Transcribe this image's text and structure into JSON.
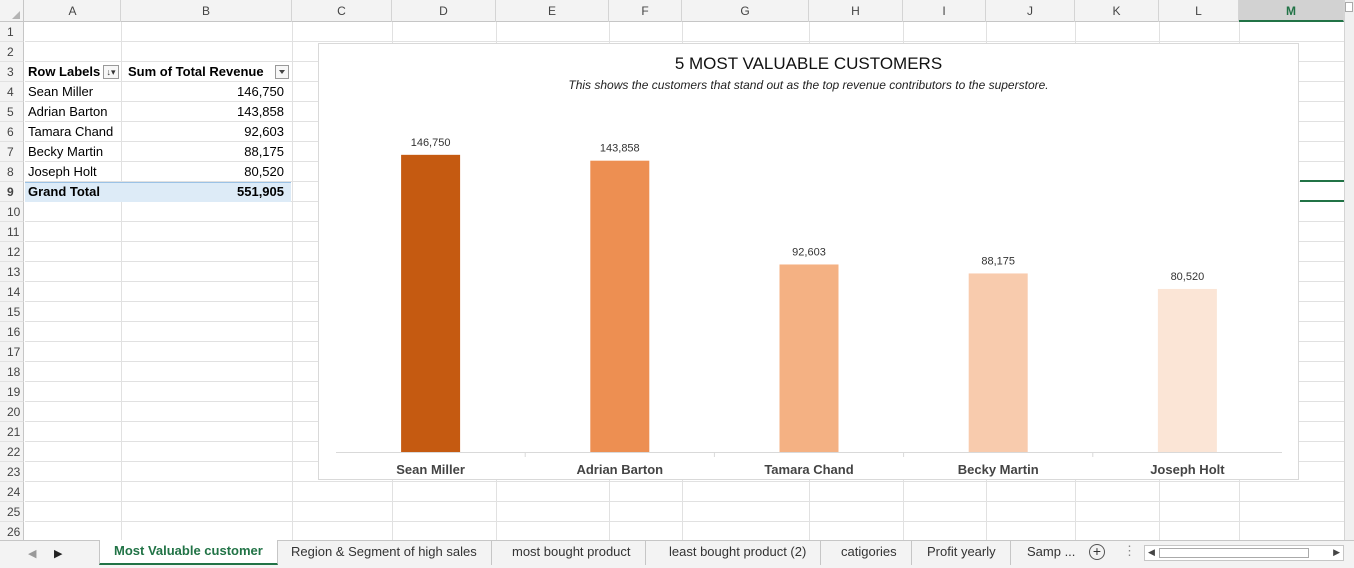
{
  "columns": [
    "A",
    "B",
    "C",
    "D",
    "E",
    "F",
    "G",
    "H",
    "I",
    "J",
    "K",
    "L",
    "M"
  ],
  "selected_column": "M",
  "rows": [
    "1",
    "2",
    "3",
    "4",
    "5",
    "6",
    "7",
    "8",
    "9",
    "10",
    "11",
    "12",
    "13",
    "14",
    "15",
    "16",
    "17",
    "18",
    "19",
    "20",
    "21",
    "22",
    "23",
    "24",
    "25",
    "26"
  ],
  "pivot": {
    "header_label": "Row Labels",
    "header_value": "Sum of Total Revenue",
    "rows": [
      {
        "label": "Sean Miller",
        "value": "146,750"
      },
      {
        "label": "Adrian Barton",
        "value": "143,858"
      },
      {
        "label": "Tamara Chand",
        "value": "92,603"
      },
      {
        "label": "Becky Martin",
        "value": "88,175"
      },
      {
        "label": "Joseph Holt",
        "value": "80,520"
      }
    ],
    "total_label": "Grand Total",
    "total_value": "551,905"
  },
  "chart_data": {
    "type": "bar",
    "title": "5 MOST VALUABLE CUSTOMERS",
    "subtitle": "This shows the customers that stand out as the top revenue contributors to the superstore.",
    "categories": [
      "Sean Miller",
      "Adrian Barton",
      "Tamara Chand",
      "Becky Martin",
      "Joseph Holt"
    ],
    "values": [
      146750,
      143858,
      92603,
      88175,
      80520
    ],
    "data_labels": [
      "146,750",
      "143,858",
      "92,603",
      "88,175",
      "80,520"
    ],
    "colors": [
      "#c55a11",
      "#ed8f52",
      "#f4b183",
      "#f8cbad",
      "#fbe5d6"
    ],
    "ylim": [
      0,
      160000
    ],
    "grid": false,
    "legend": "none"
  },
  "tabs": [
    {
      "label": "Most Valuable customer",
      "active": true
    },
    {
      "label": "Region & Segment of high sales",
      "active": false
    },
    {
      "label": "most bought product",
      "active": false
    },
    {
      "label": "least bought product (2)",
      "active": false
    },
    {
      "label": "catigories",
      "active": false
    },
    {
      "label": "Profit yearly",
      "active": false
    },
    {
      "label": "Samp ...",
      "active": false
    }
  ],
  "colors": {
    "accent": "#217346",
    "pivot_total_bg": "#ddebf7"
  }
}
